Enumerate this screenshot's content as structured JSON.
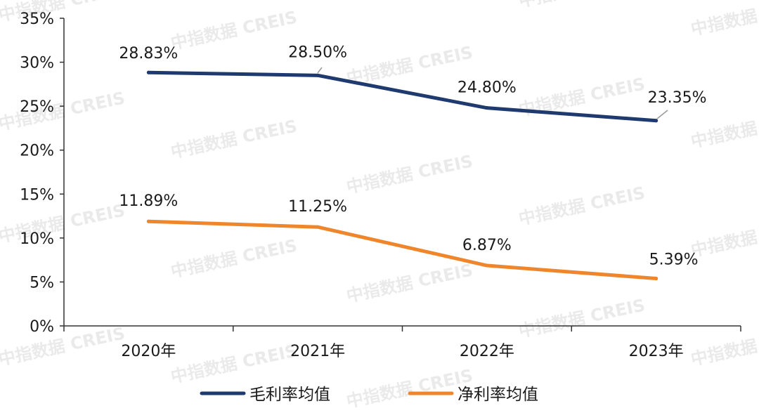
{
  "watermark_text": "中指数据 CREIS",
  "chart_data": {
    "type": "line",
    "categories": [
      "2020年",
      "2021年",
      "2022年",
      "2023年"
    ],
    "series": [
      {
        "name": "毛利率均值",
        "values": [
          28.83,
          28.5,
          24.8,
          23.35
        ],
        "labels": [
          "28.83%",
          "28.50%",
          "24.80%",
          "23.35%"
        ],
        "color": "#1f3a6e"
      },
      {
        "name": "净利率均值",
        "values": [
          11.89,
          11.25,
          6.87,
          5.39
        ],
        "labels": [
          "11.89%",
          "11.25%",
          "6.87%",
          "5.39%"
        ],
        "color": "#f0862c"
      }
    ],
    "ylim": [
      0,
      35
    ],
    "yticks": [
      0,
      5,
      10,
      15,
      20,
      25,
      30,
      35
    ],
    "ytick_labels": [
      "0%",
      "5%",
      "10%",
      "15%",
      "20%",
      "25%",
      "30%",
      "35%"
    ],
    "grid": false,
    "legend_position": "bottom"
  }
}
